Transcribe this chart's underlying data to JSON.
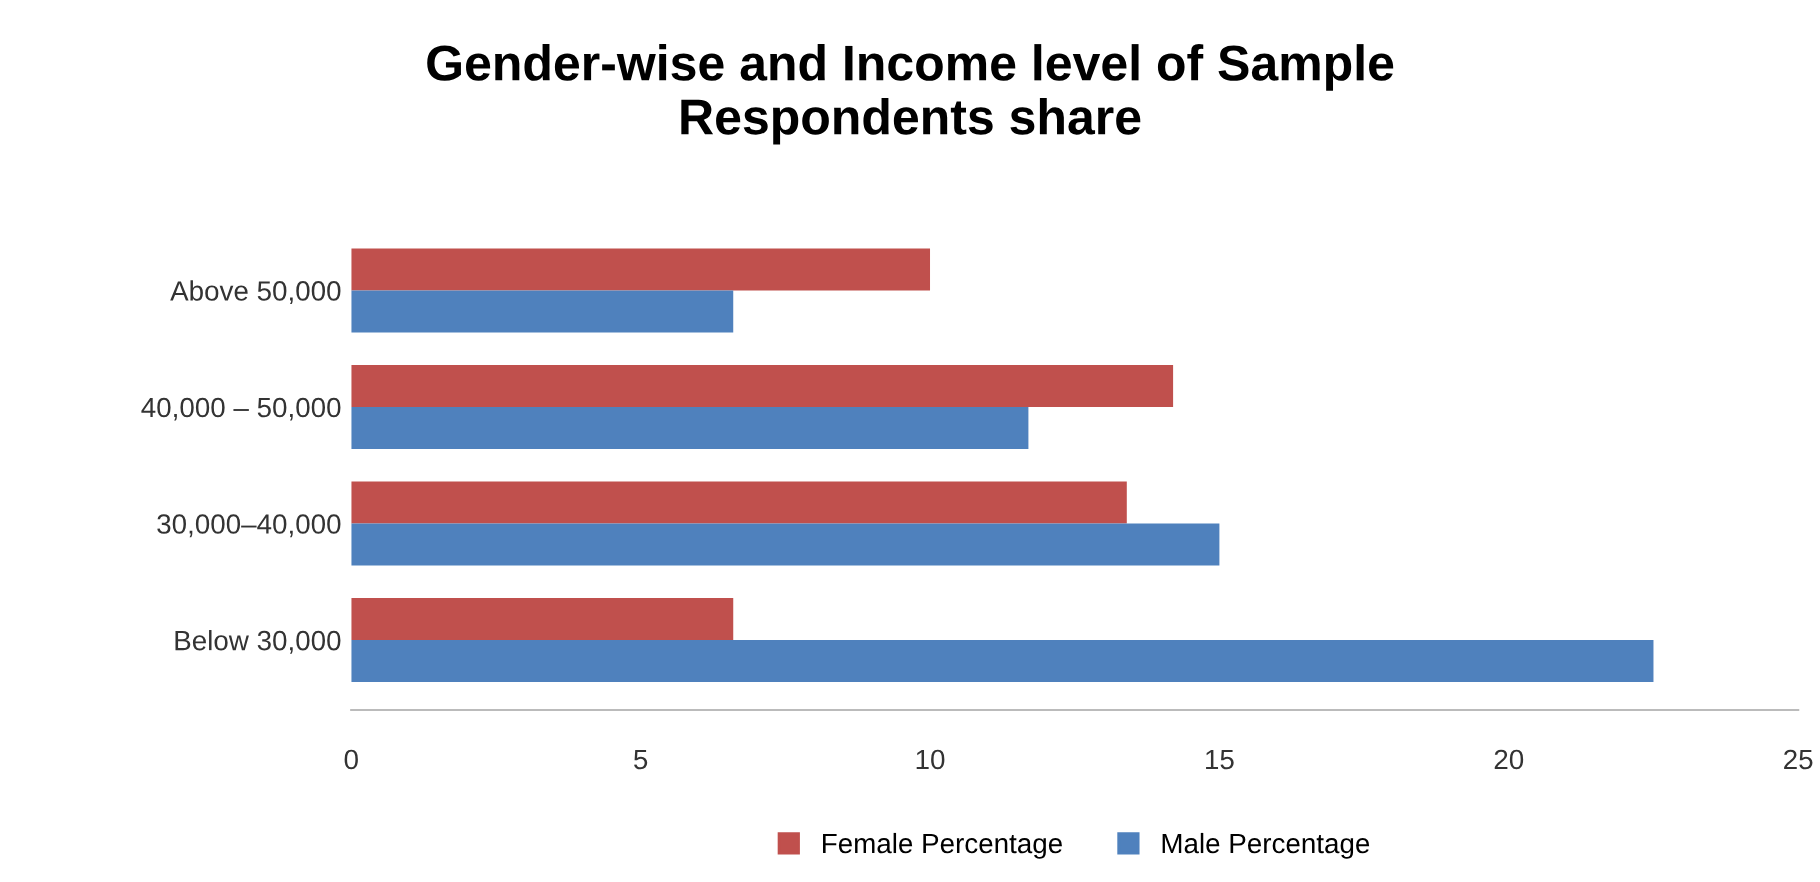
{
  "chart_data": {
    "type": "bar",
    "orientation": "horizontal",
    "title": "Gender-wise and Income level of Sample\nRespondents share",
    "categories": [
      "Above 50,000",
      "40,000 – 50,000",
      "30,000–40,000",
      "Below 30,000"
    ],
    "series": [
      {
        "name": "Female Percentage",
        "color": "#c0504d",
        "values": [
          10.0,
          14.2,
          13.4,
          6.6
        ]
      },
      {
        "name": "Male Percentage",
        "color": "#4f81bd",
        "values": [
          6.6,
          11.7,
          15.0,
          22.5
        ]
      }
    ],
    "xlim": [
      0,
      25
    ],
    "xticks": [
      0,
      5,
      10,
      15,
      20,
      25
    ],
    "grid": false,
    "legend": "bottom"
  }
}
